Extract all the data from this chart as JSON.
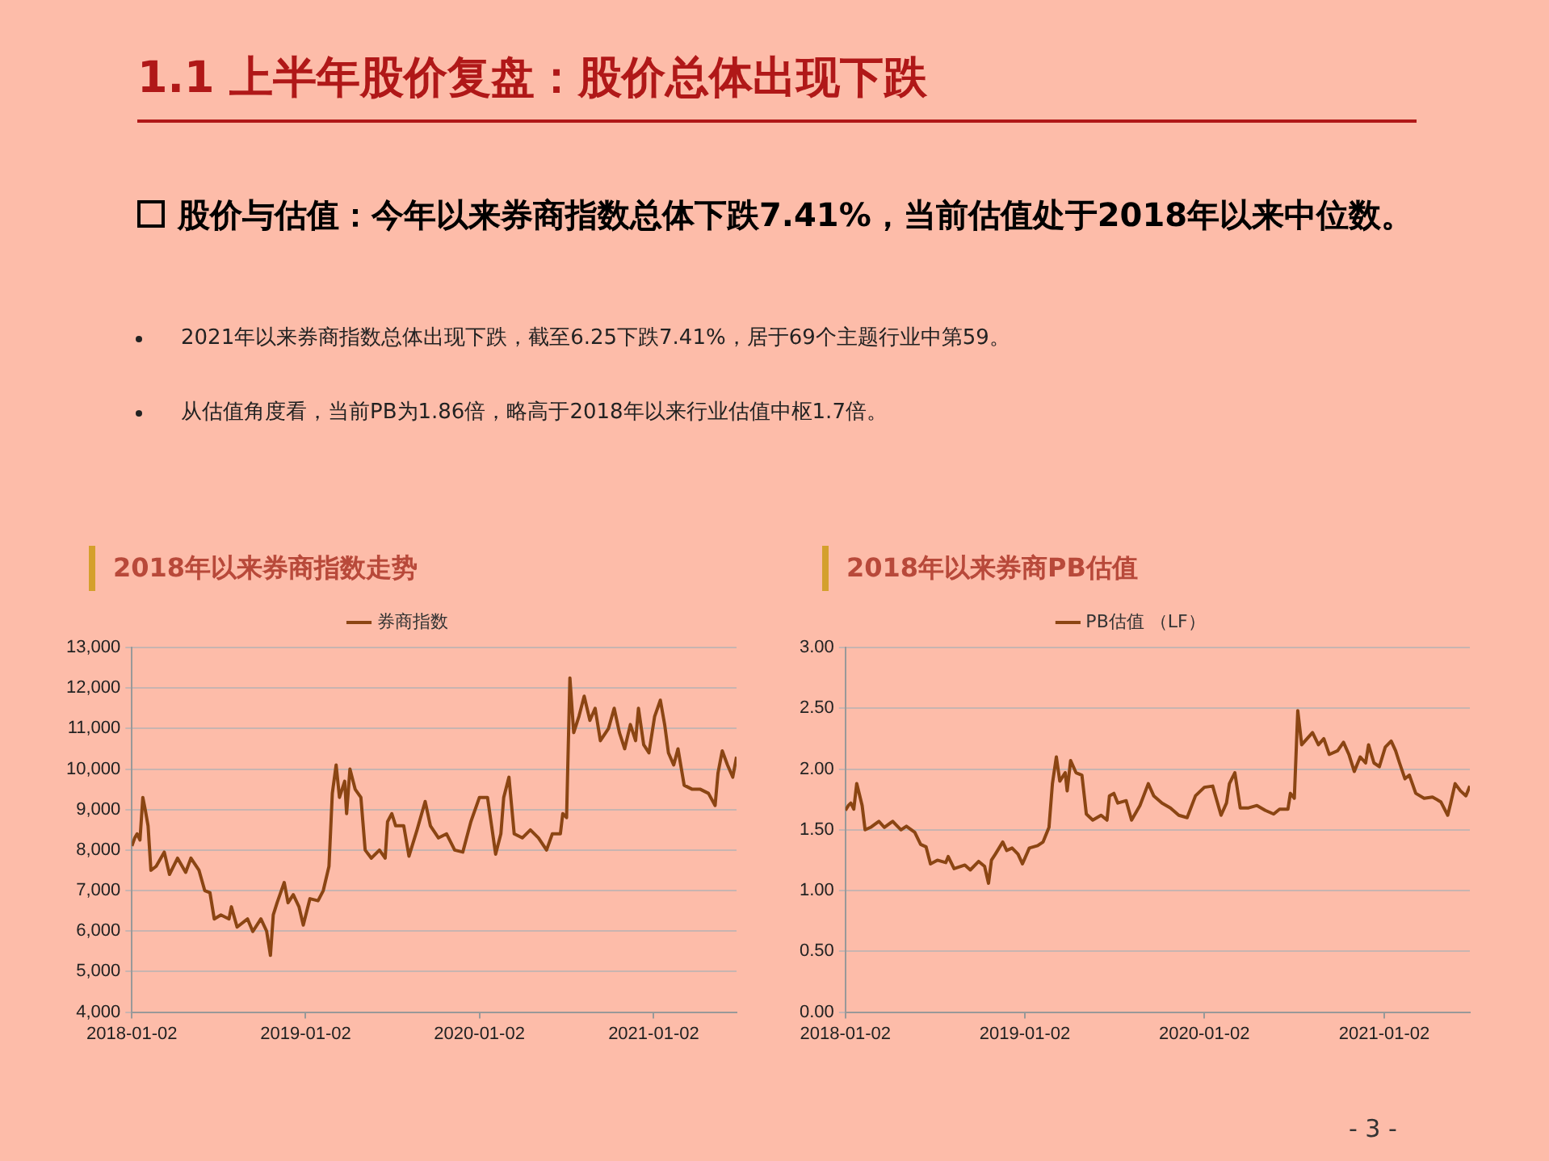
{
  "chart_data": [
    {
      "type": "other",
      "title": "1.1  上半年股价复盘：股价总体出现下跌",
      "subtitle": "股价与估值：今年以来券商指数总体下跌7.41%，当前估值处于2018年以来中位数。",
      "annotations": [
        "2021年以来券商指数总体出现下跌，截至6.25下跌7.41%，居于69个主题行业中第59。",
        "从估值角度看，当前PB为1.86倍，略高于2018年以来行业估值中枢1.7倍。",
        "- 3 -"
      ]
    },
    {
      "type": "line",
      "title": "2018年以来券商指数走势",
      "legend": "top",
      "grid": "y",
      "xlim": [
        "2018-01-02",
        "2021-06-25"
      ],
      "xticks": [
        "2018-01-02",
        "2019-01-02",
        "2020-01-02",
        "2021-01-02"
      ],
      "ylim": [
        4000,
        13000
      ],
      "yticks": [
        {
          "value": 4000,
          "label": "4,000"
        },
        {
          "value": 5000,
          "label": "5,000"
        },
        {
          "value": 6000,
          "label": "6,000"
        },
        {
          "value": 7000,
          "label": "7,000"
        },
        {
          "value": 8000,
          "label": "8,000"
        },
        {
          "value": 9000,
          "label": "9,000"
        },
        {
          "value": 10000,
          "label": "10,000"
        },
        {
          "value": 11000,
          "label": "11,000"
        },
        {
          "value": 12000,
          "label": "12,000"
        },
        {
          "value": 13000,
          "label": "13,000"
        }
      ],
      "series": [
        {
          "name": "券商指数",
          "color": "#8b4513",
          "x": [
            "2018-01-02",
            "2018-01-08",
            "2018-01-13",
            "2018-01-19",
            "2018-01-25",
            "2018-01-30",
            "2018-02-05",
            "2018-02-11",
            "2018-02-22",
            "2018-03-11",
            "2018-03-22",
            "2018-04-08",
            "2018-04-25",
            "2018-05-06",
            "2018-05-23",
            "2018-06-04",
            "2018-06-15",
            "2018-06-24",
            "2018-07-08",
            "2018-07-25",
            "2018-07-30",
            "2018-08-11",
            "2018-09-02",
            "2018-09-13",
            "2018-09-30",
            "2018-10-12",
            "2018-10-20",
            "2018-10-26",
            "2018-11-03",
            "2018-11-18",
            "2018-11-26",
            "2018-12-07",
            "2018-12-19",
            "2018-12-28",
            "2019-01-11",
            "2019-01-28",
            "2019-02-08",
            "2019-02-20",
            "2019-02-27",
            "2019-03-07",
            "2019-03-14",
            "2019-03-25",
            "2019-03-29",
            "2019-04-05",
            "2019-04-16",
            "2019-04-28",
            "2019-05-07",
            "2019-05-20",
            "2019-06-06",
            "2019-06-18",
            "2019-06-23",
            "2019-07-02",
            "2019-07-10",
            "2019-07-27",
            "2019-08-07",
            "2019-08-24",
            "2019-09-10",
            "2019-09-21",
            "2019-10-08",
            "2019-10-25",
            "2019-11-11",
            "2019-11-28",
            "2019-12-15",
            "2020-01-02",
            "2020-01-19",
            "2020-02-05",
            "2020-02-16",
            "2020-02-22",
            "2020-03-04",
            "2020-03-15",
            "2020-04-01",
            "2020-04-18",
            "2020-05-05",
            "2020-05-22",
            "2020-06-03",
            "2020-06-20",
            "2020-06-25",
            "2020-07-03",
            "2020-07-10",
            "2020-07-18",
            "2020-07-29",
            "2020-08-09",
            "2020-08-21",
            "2020-09-01",
            "2020-09-12",
            "2020-09-29",
            "2020-10-11",
            "2020-10-22",
            "2020-11-02",
            "2020-11-14",
            "2020-11-25",
            "2020-12-01",
            "2020-12-12",
            "2020-12-23",
            "2021-01-04",
            "2021-01-16",
            "2021-01-25",
            "2021-02-02",
            "2021-02-13",
            "2021-02-22",
            "2021-03-07",
            "2021-03-24",
            "2021-04-10",
            "2021-04-27",
            "2021-05-11",
            "2021-05-17",
            "2021-05-26",
            "2021-06-06",
            "2021-06-17",
            "2021-06-25"
          ],
          "values": [
            8100,
            8300,
            8400,
            8250,
            9300,
            9000,
            8600,
            7500,
            7600,
            7950,
            7400,
            7800,
            7450,
            7800,
            7500,
            7000,
            6950,
            6300,
            6400,
            6300,
            6600,
            6100,
            6300,
            5990,
            6300,
            6000,
            5400,
            6400,
            6700,
            7200,
            6700,
            6900,
            6600,
            6150,
            6800,
            6750,
            7000,
            7600,
            9400,
            10100,
            9300,
            9700,
            8900,
            10000,
            9500,
            9300,
            8000,
            7800,
            8000,
            7800,
            8700,
            8900,
            8600,
            8600,
            7850,
            8500,
            9200,
            8600,
            8300,
            8400,
            8000,
            7950,
            8700,
            9300,
            9300,
            7900,
            8400,
            9300,
            9800,
            8400,
            8300,
            8500,
            8300,
            8000,
            8400,
            8400,
            8900,
            8800,
            12250,
            10900,
            11300,
            11800,
            11200,
            11500,
            10700,
            11000,
            11500,
            10900,
            10500,
            11100,
            10700,
            11500,
            10600,
            10400,
            11300,
            11700,
            11100,
            10400,
            10100,
            10500,
            9600,
            9500,
            9500,
            9400,
            9100,
            9900,
            10450,
            10100,
            9800,
            10300
          ]
        }
      ]
    },
    {
      "type": "line",
      "title": "2018年以来券商PB估值",
      "legend": "top",
      "grid": "y",
      "xlim": [
        "2018-01-02",
        "2021-06-25"
      ],
      "xticks": [
        "2018-01-02",
        "2019-01-02",
        "2020-01-02",
        "2021-01-02"
      ],
      "ylim": [
        0,
        3
      ],
      "yticks": [
        {
          "value": 0,
          "label": "0.00"
        },
        {
          "value": 0.5,
          "label": "0.50"
        },
        {
          "value": 1,
          "label": "1.00"
        },
        {
          "value": 1.5,
          "label": "1.50"
        },
        {
          "value": 2,
          "label": "2.00"
        },
        {
          "value": 2.5,
          "label": "2.50"
        },
        {
          "value": 3,
          "label": "3.00"
        }
      ],
      "series": [
        {
          "name": "PB估值 （LF）",
          "color": "#8b4513",
          "x": [
            "2018-01-02",
            "2018-01-08",
            "2018-01-13",
            "2018-01-19",
            "2018-01-25",
            "2018-01-30",
            "2018-02-05",
            "2018-02-11",
            "2018-02-22",
            "2018-03-11",
            "2018-03-22",
            "2018-04-08",
            "2018-04-25",
            "2018-05-06",
            "2018-05-23",
            "2018-06-04",
            "2018-06-15",
            "2018-06-24",
            "2018-07-08",
            "2018-07-25",
            "2018-07-30",
            "2018-08-11",
            "2018-09-02",
            "2018-09-13",
            "2018-09-30",
            "2018-10-12",
            "2018-10-20",
            "2018-10-26",
            "2018-11-03",
            "2018-11-18",
            "2018-11-26",
            "2018-12-07",
            "2018-12-19",
            "2018-12-28",
            "2019-01-11",
            "2019-01-28",
            "2019-02-08",
            "2019-02-20",
            "2019-02-27",
            "2019-03-07",
            "2019-03-14",
            "2019-03-25",
            "2019-03-29",
            "2019-04-05",
            "2019-04-16",
            "2019-04-28",
            "2019-05-07",
            "2019-05-20",
            "2019-06-06",
            "2019-06-18",
            "2019-06-23",
            "2019-07-02",
            "2019-07-10",
            "2019-07-27",
            "2019-08-07",
            "2019-08-24",
            "2019-09-10",
            "2019-09-21",
            "2019-10-08",
            "2019-10-25",
            "2019-11-11",
            "2019-11-28",
            "2019-12-15",
            "2020-01-02",
            "2020-01-19",
            "2020-02-05",
            "2020-02-16",
            "2020-02-22",
            "2020-03-04",
            "2020-03-15",
            "2020-04-01",
            "2020-04-18",
            "2020-05-05",
            "2020-05-22",
            "2020-06-03",
            "2020-06-20",
            "2020-06-25",
            "2020-07-03",
            "2020-07-10",
            "2020-07-18",
            "2020-07-29",
            "2020-08-09",
            "2020-08-21",
            "2020-09-01",
            "2020-09-12",
            "2020-09-29",
            "2020-10-11",
            "2020-10-22",
            "2020-11-02",
            "2020-11-14",
            "2020-11-25",
            "2020-12-01",
            "2020-12-12",
            "2020-12-23",
            "2021-01-04",
            "2021-01-16",
            "2021-01-25",
            "2021-02-02",
            "2021-02-13",
            "2021-02-22",
            "2021-03-07",
            "2021-03-24",
            "2021-04-10",
            "2021-04-27",
            "2021-05-11",
            "2021-05-17",
            "2021-05-26",
            "2021-06-06",
            "2021-06-17",
            "2021-06-25"
          ],
          "values": [
            1.66,
            1.7,
            1.72,
            1.67,
            1.88,
            1.8,
            1.7,
            1.5,
            1.52,
            1.57,
            1.52,
            1.57,
            1.5,
            1.53,
            1.48,
            1.38,
            1.36,
            1.22,
            1.25,
            1.23,
            1.28,
            1.18,
            1.21,
            1.17,
            1.24,
            1.2,
            1.06,
            1.25,
            1.3,
            1.4,
            1.33,
            1.35,
            1.3,
            1.22,
            1.35,
            1.37,
            1.4,
            1.52,
            1.88,
            2.1,
            1.9,
            1.97,
            1.82,
            2.07,
            1.97,
            1.95,
            1.63,
            1.58,
            1.62,
            1.58,
            1.78,
            1.8,
            1.72,
            1.74,
            1.58,
            1.7,
            1.88,
            1.78,
            1.72,
            1.68,
            1.62,
            1.6,
            1.78,
            1.85,
            1.86,
            1.62,
            1.72,
            1.88,
            1.97,
            1.68,
            1.68,
            1.7,
            1.66,
            1.63,
            1.67,
            1.67,
            1.8,
            1.76,
            2.48,
            2.2,
            2.25,
            2.3,
            2.2,
            2.25,
            2.12,
            2.15,
            2.22,
            2.12,
            1.98,
            2.1,
            2.05,
            2.2,
            2.05,
            2.02,
            2.18,
            2.23,
            2.15,
            2.05,
            1.92,
            1.95,
            1.8,
            1.76,
            1.77,
            1.73,
            1.62,
            1.72,
            1.88,
            1.82,
            1.78,
            1.86
          ]
        }
      ]
    }
  ]
}
